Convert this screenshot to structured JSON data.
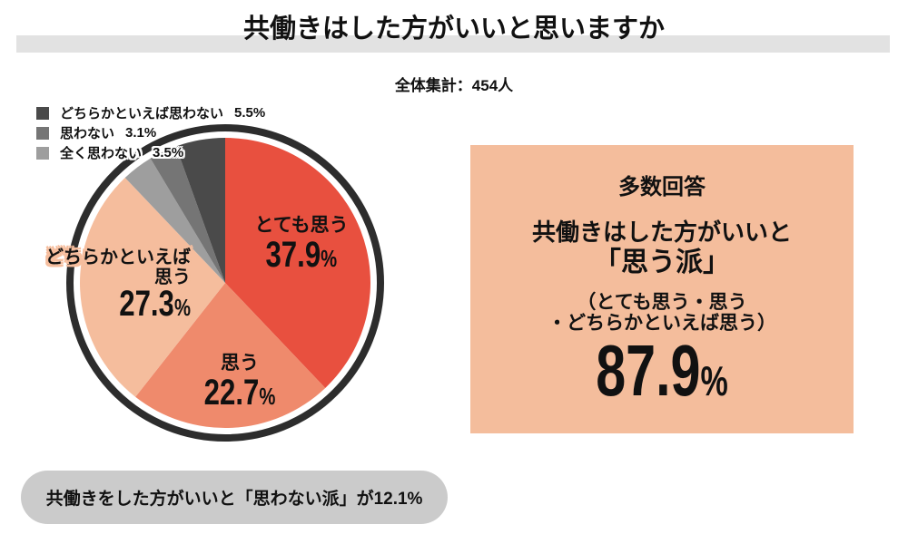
{
  "header": {
    "title": "共働きはした方がいいと思いますか",
    "subtitle": "全体集計：454人"
  },
  "chart_data": {
    "type": "pie",
    "title": "共働きはした方がいいと思いますか",
    "total_label": "全体集計：454人",
    "total_count": 454,
    "percent_symbol": "%",
    "start_angle_deg": 0,
    "direction": "clockwise",
    "ring_color": "#2D2D2D",
    "segments": [
      {
        "label": "とても思う",
        "value": 37.9,
        "pct_label": "37.9",
        "color": "#E8503F"
      },
      {
        "label": "思う",
        "value": 22.7,
        "pct_label": "22.7",
        "color": "#EF8A6C"
      },
      {
        "label": "どちらかといえば思う",
        "label_lines": [
          "どちらかといえば",
          "思う"
        ],
        "value": 27.3,
        "pct_label": "27.3",
        "color": "#F5BD9D"
      },
      {
        "label": "全く思わない",
        "value": 3.5,
        "pct_label": "3.5",
        "color": "#9E9E9E"
      },
      {
        "label": "思わない",
        "value": 3.1,
        "pct_label": "3.1",
        "color": "#757575"
      },
      {
        "label": "どちらかといえば思わない",
        "value": 5.5,
        "pct_label": "5.5",
        "color": "#4A4A4A"
      }
    ],
    "legend_position": "top-left",
    "legend": [
      {
        "label": "どちらかといえば思わない",
        "value_label": "5.5%",
        "color": "#4A4A4A"
      },
      {
        "label": "思わない",
        "value_label": "3.1%",
        "color": "#757575"
      },
      {
        "label": "全く思わない",
        "value_label": "3.5%",
        "color": "#9E9E9E"
      }
    ]
  },
  "summary_panel": {
    "heading": "多数回答",
    "line1": "共働きはした方がいいと",
    "line2": "「思う派」",
    "sub_line1": "（とても思う・思う",
    "sub_line2": "・どちらかといえば思う）",
    "value": "87.9",
    "value_unit": "%",
    "bg_color": "#F4BD9C"
  },
  "footnote": {
    "text": "共働きをした方がいいと「思わない派」が12.1%",
    "bg_color": "#CBCBCB"
  }
}
